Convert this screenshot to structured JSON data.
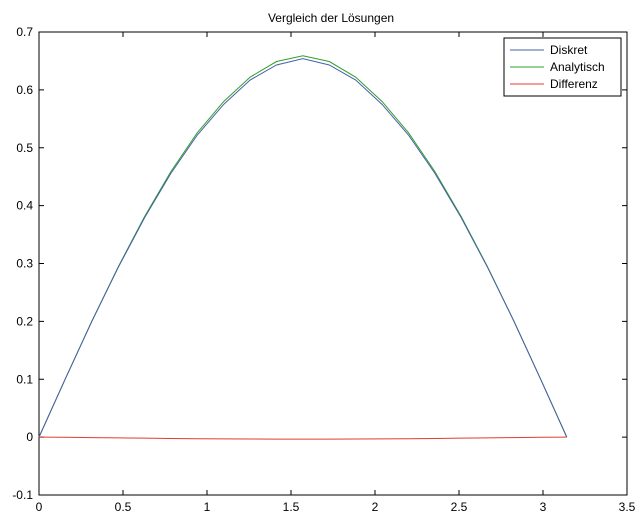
{
  "chart_data": {
    "type": "line",
    "title": "Vergleich der Lösungen",
    "xlabel": "",
    "ylabel": "",
    "xlim": [
      0,
      3.5
    ],
    "ylim": [
      -0.1,
      0.7
    ],
    "x_ticks": [
      "0",
      "0.5",
      "1",
      "1.5",
      "2",
      "2.5",
      "3",
      "3.5"
    ],
    "y_ticks": [
      "-0.1",
      "0",
      "0.1",
      "0.2",
      "0.3",
      "0.4",
      "0.5",
      "0.6",
      "0.7"
    ],
    "grid": false,
    "legend_position": "top-right",
    "x": [
      0,
      0.1571,
      0.3142,
      0.4712,
      0.6283,
      0.7854,
      0.9425,
      1.0996,
      1.2566,
      1.4137,
      1.5708,
      1.7279,
      1.885,
      2.042,
      2.1991,
      2.3562,
      2.5133,
      2.6704,
      2.8274,
      2.9845,
      3.1416
    ],
    "series": [
      {
        "name": "Diskret",
        "color": "#4a5fa8",
        "values": [
          0,
          0.101,
          0.2,
          0.293,
          0.379,
          0.456,
          0.522,
          0.575,
          0.617,
          0.643,
          0.654,
          0.643,
          0.617,
          0.575,
          0.522,
          0.456,
          0.379,
          0.293,
          0.2,
          0.101,
          0
        ]
      },
      {
        "name": "Analytisch",
        "color": "#2ca02c",
        "values": [
          0,
          0.101,
          0.2,
          0.294,
          0.381,
          0.459,
          0.526,
          0.58,
          0.622,
          0.649,
          0.659,
          0.649,
          0.622,
          0.58,
          0.526,
          0.459,
          0.381,
          0.294,
          0.2,
          0.101,
          0
        ]
      },
      {
        "name": "Differenz",
        "color": "#e03c31",
        "values": [
          0,
          -0.0003,
          -0.0008,
          -0.0013,
          -0.0018,
          -0.0023,
          -0.0028,
          -0.0031,
          -0.0033,
          -0.0035,
          -0.0035,
          -0.0035,
          -0.0033,
          -0.0031,
          -0.0028,
          -0.0023,
          -0.0018,
          -0.0013,
          -0.0008,
          -0.0003,
          0
        ]
      }
    ]
  }
}
